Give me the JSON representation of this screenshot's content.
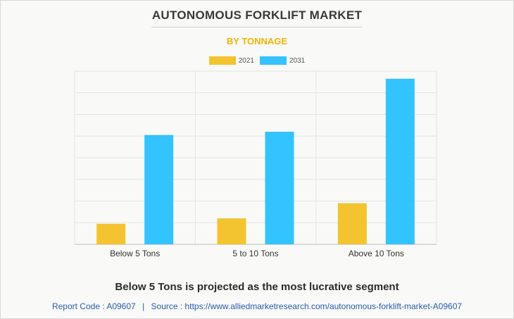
{
  "header": {
    "title": "AUTONOMOUS FORKLIFT MARKET",
    "subtitle": "BY TONNAGE"
  },
  "colors": {
    "series_2021": "#f4c430",
    "series_2031": "#33c3ff"
  },
  "chart_data": {
    "type": "bar",
    "title": "AUTONOMOUS FORKLIFT MARKET",
    "subtitle": "BY TONNAGE",
    "categories": [
      "Below 5 Tons",
      "5 to 10 Tons",
      "Above 10 Tons"
    ],
    "series": [
      {
        "name": "2021",
        "values": [
          0.95,
          1.2,
          1.9
        ]
      },
      {
        "name": "2031",
        "values": [
          5.05,
          5.2,
          7.65
        ]
      }
    ],
    "ylim": [
      0,
      8
    ],
    "grid": true,
    "legend_position": "top-center",
    "xlabel": "",
    "ylabel": ""
  },
  "caption": "Below 5 Tons is projected as the most lucrative segment",
  "footer": {
    "report_code": "Report Code : A09607",
    "separator": "|",
    "source": "Source : https://www.alliedmarketresearch.com/autonomous-forklift-market-A09607"
  }
}
